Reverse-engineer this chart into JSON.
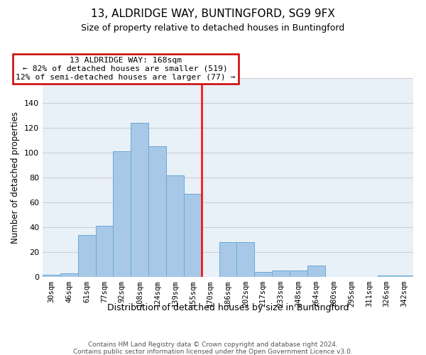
{
  "title": "13, ALDRIDGE WAY, BUNTINGFORD, SG9 9FX",
  "subtitle": "Size of property relative to detached houses in Buntingford",
  "xlabel": "Distribution of detached houses by size in Buntingford",
  "ylabel": "Number of detached properties",
  "bin_labels": [
    "30sqm",
    "46sqm",
    "61sqm",
    "77sqm",
    "92sqm",
    "108sqm",
    "124sqm",
    "139sqm",
    "155sqm",
    "170sqm",
    "186sqm",
    "202sqm",
    "217sqm",
    "233sqm",
    "248sqm",
    "264sqm",
    "280sqm",
    "295sqm",
    "311sqm",
    "326sqm",
    "342sqm"
  ],
  "bar_heights": [
    2,
    3,
    34,
    41,
    101,
    124,
    105,
    82,
    67,
    0,
    28,
    28,
    4,
    5,
    5,
    9,
    0,
    0,
    0,
    1,
    1
  ],
  "bar_color": "#a8c8e8",
  "bar_edge_color": "#6aaad4",
  "vline_x_idx": 9,
  "vline_color": "red",
  "annotation_title": "13 ALDRIDGE WAY: 168sqm",
  "annotation_line1": "← 82% of detached houses are smaller (519)",
  "annotation_line2": "12% of semi-detached houses are larger (77) →",
  "annotation_box_color": "white",
  "annotation_box_edge": "#cc0000",
  "ylim": [
    0,
    160
  ],
  "yticks": [
    0,
    20,
    40,
    60,
    80,
    100,
    120,
    140,
    160
  ],
  "footer1": "Contains HM Land Registry data © Crown copyright and database right 2024.",
  "footer2": "Contains public sector information licensed under the Open Government Licence v3.0.",
  "bg_color": "#e8f0f8"
}
